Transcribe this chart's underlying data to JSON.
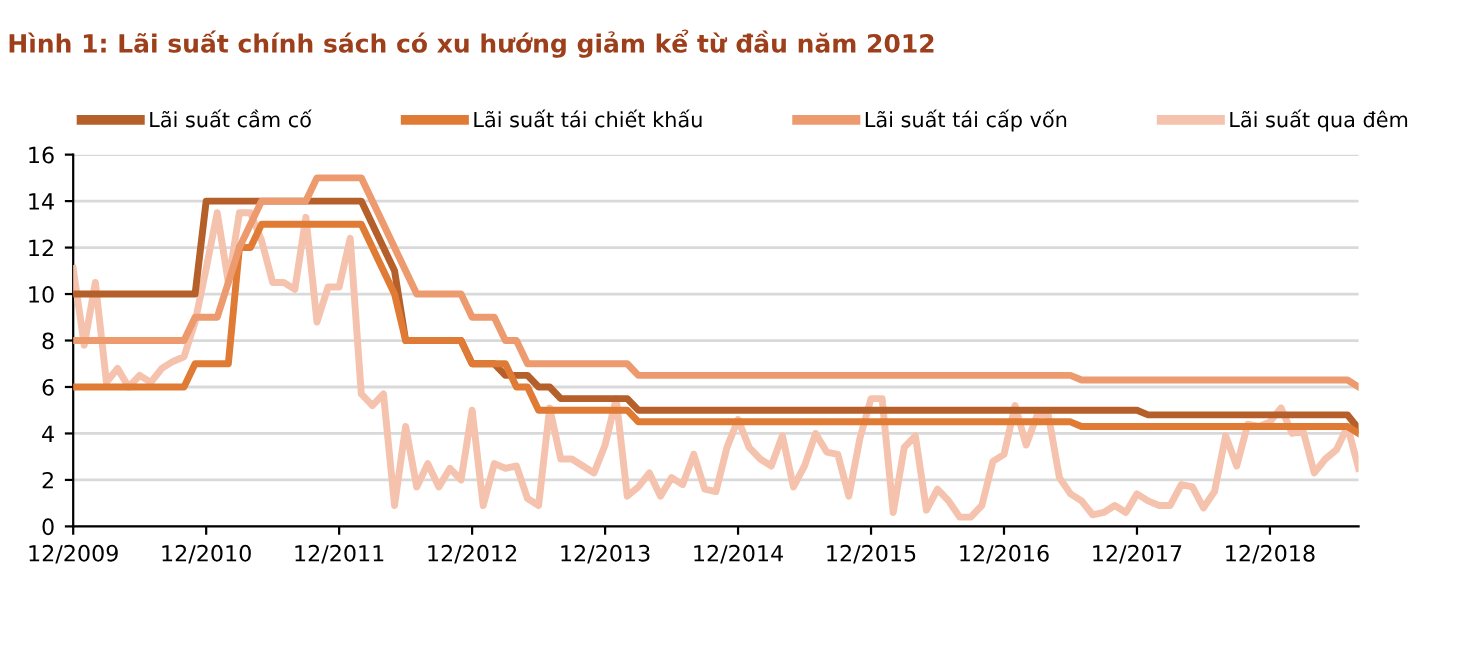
{
  "chart_data": {
    "type": "line",
    "title": "Hình 1: Lãi suất chính sách có xu hướng giảm kể từ đầu năm 2012",
    "xlim": [
      "2009-12",
      "2019-08"
    ],
    "xticks": [
      {
        "value": "2009-12",
        "label": "12/2009"
      },
      {
        "value": "2010-12",
        "label": "12/2010"
      },
      {
        "value": "2011-12",
        "label": "12/2011"
      },
      {
        "value": "2012-12",
        "label": "12/2012"
      },
      {
        "value": "2013-12",
        "label": "12/2013"
      },
      {
        "value": "2014-12",
        "label": "12/2014"
      },
      {
        "value": "2015-12",
        "label": "12/2015"
      },
      {
        "value": "2016-12",
        "label": "12/2016"
      },
      {
        "value": "2017-12",
        "label": "12/2017"
      },
      {
        "value": "2018-12",
        "label": "12/2018"
      }
    ],
    "ylim": [
      0,
      16
    ],
    "yticks": [
      0,
      2,
      4,
      6,
      8,
      10,
      12,
      14,
      16
    ],
    "grid": "y",
    "legend": "top",
    "marker": "none",
    "line_style": "solid",
    "series": [
      {
        "name": "Lãi suất cầm cố",
        "color": "#b5602a",
        "x": [
          "2009-12",
          "2010-11",
          "2010-12",
          "2012-02",
          "2012-03",
          "2012-04",
          "2012-05",
          "2012-06",
          "2012-11",
          "2012-12",
          "2013-02",
          "2013-03",
          "2013-05",
          "2013-06",
          "2013-07",
          "2013-08",
          "2014-02",
          "2014-03",
          "2017-12",
          "2018-01",
          "2019-07",
          "2019-08"
        ],
        "values": [
          10,
          10,
          14,
          14,
          13,
          12,
          11,
          8,
          8,
          7,
          7,
          6.5,
          6.5,
          6,
          6,
          5.5,
          5.5,
          5,
          5,
          4.8,
          4.8,
          4.2
        ]
      },
      {
        "name": "Lãi suất tái chiết khấu",
        "color": "#e07b35",
        "x": [
          "2009-12",
          "2010-10",
          "2010-11",
          "2011-02",
          "2011-03",
          "2011-04",
          "2011-05",
          "2012-02",
          "2012-03",
          "2012-04",
          "2012-05",
          "2012-06",
          "2012-11",
          "2012-12",
          "2013-03",
          "2013-04",
          "2013-05",
          "2013-06",
          "2014-02",
          "2014-03",
          "2017-06",
          "2017-07",
          "2019-07",
          "2019-08"
        ],
        "values": [
          6,
          6,
          7,
          7,
          12,
          12,
          13,
          13,
          12,
          11,
          10,
          8,
          8,
          7,
          7,
          6,
          6,
          5,
          5,
          4.5,
          4.5,
          4.3,
          4.3,
          4
        ]
      },
      {
        "name": "Lãi suất tái cấp vốn",
        "color": "#ec9a6e",
        "x": [
          "2009-12",
          "2010-10",
          "2010-11",
          "2011-01",
          "2011-03",
          "2011-04",
          "2011-05",
          "2011-09",
          "2011-10",
          "2012-02",
          "2012-04",
          "2012-06",
          "2012-07",
          "2012-11",
          "2012-12",
          "2013-02",
          "2013-03",
          "2013-04",
          "2013-05",
          "2014-02",
          "2014-03",
          "2017-06",
          "2017-07",
          "2019-07",
          "2019-08"
        ],
        "values": [
          8,
          8,
          9,
          9,
          12,
          13,
          14,
          14,
          15,
          15,
          13,
          11,
          10,
          10,
          9,
          9,
          8,
          8,
          7,
          7,
          6.5,
          6.5,
          6.3,
          6.3,
          6
        ]
      },
      {
        "name": "Lãi suất qua đêm",
        "color": "#f5c3ad",
        "x": [
          "2009-12",
          "2010-01",
          "2010-02",
          "2010-03",
          "2010-04",
          "2010-05",
          "2010-06",
          "2010-07",
          "2010-08",
          "2010-09",
          "2010-10",
          "2010-11",
          "2010-12",
          "2011-01",
          "2011-02",
          "2011-03",
          "2011-04",
          "2011-05",
          "2011-06",
          "2011-07",
          "2011-08",
          "2011-09",
          "2011-10",
          "2011-11",
          "2011-12",
          "2012-01",
          "2012-02",
          "2012-03",
          "2012-04",
          "2012-05",
          "2012-06",
          "2012-07",
          "2012-08",
          "2012-09",
          "2012-10",
          "2012-11",
          "2012-12",
          "2013-01",
          "2013-02",
          "2013-03",
          "2013-04",
          "2013-05",
          "2013-06",
          "2013-07",
          "2013-08",
          "2013-09",
          "2013-10",
          "2013-11",
          "2013-12",
          "2014-01",
          "2014-02",
          "2014-03",
          "2014-04",
          "2014-05",
          "2014-06",
          "2014-07",
          "2014-08",
          "2014-09",
          "2014-10",
          "2014-11",
          "2014-12",
          "2015-01",
          "2015-02",
          "2015-03",
          "2015-04",
          "2015-05",
          "2015-06",
          "2015-07",
          "2015-08",
          "2015-09",
          "2015-10",
          "2015-11",
          "2015-12",
          "2016-01",
          "2016-02",
          "2016-03",
          "2016-04",
          "2016-05",
          "2016-06",
          "2016-07",
          "2016-08",
          "2016-09",
          "2016-10",
          "2016-11",
          "2016-12",
          "2017-01",
          "2017-02",
          "2017-03",
          "2017-04",
          "2017-05",
          "2017-06",
          "2017-07",
          "2017-08",
          "2017-09",
          "2017-10",
          "2017-11",
          "2017-12",
          "2018-01",
          "2018-02",
          "2018-03",
          "2018-04",
          "2018-05",
          "2018-06",
          "2018-07",
          "2018-08",
          "2018-09",
          "2018-10",
          "2018-11",
          "2018-12",
          "2019-01",
          "2019-02",
          "2019-03",
          "2019-04",
          "2019-05",
          "2019-06",
          "2019-07",
          "2019-08"
        ],
        "values": [
          11.1,
          7.8,
          10.5,
          6.2,
          6.8,
          6.0,
          6.5,
          6.2,
          6.8,
          7.1,
          7.3,
          8.8,
          11.1,
          13.5,
          10.5,
          13.5,
          13.5,
          12.3,
          10.5,
          10.5,
          10.2,
          13.3,
          8.8,
          10.3,
          10.3,
          12.4,
          5.7,
          5.2,
          5.7,
          0.9,
          4.3,
          1.7,
          2.7,
          1.7,
          2.5,
          2.0,
          5.0,
          0.9,
          2.7,
          2.5,
          2.6,
          1.2,
          0.9,
          5.1,
          2.9,
          2.9,
          2.6,
          2.3,
          3.5,
          5.5,
          1.3,
          1.7,
          2.3,
          1.3,
          2.1,
          1.8,
          3.1,
          1.6,
          1.5,
          3.4,
          4.6,
          3.4,
          2.9,
          2.6,
          3.9,
          1.7,
          2.6,
          4.0,
          3.2,
          3.1,
          1.3,
          3.8,
          5.5,
          5.5,
          0.6,
          3.4,
          3.9,
          0.7,
          1.6,
          1.1,
          0.4,
          0.4,
          0.9,
          2.8,
          3.1,
          5.2,
          3.5,
          4.8,
          4.8,
          2.1,
          1.4,
          1.1,
          0.5,
          0.6,
          0.9,
          0.6,
          1.4,
          1.1,
          0.9,
          0.9,
          1.8,
          1.7,
          0.8,
          1.5,
          3.9,
          2.6,
          4.4,
          4.3,
          4.5,
          5.1,
          4.0,
          4.1,
          2.3,
          2.9,
          3.3,
          4.3,
          2.5
        ]
      }
    ]
  }
}
